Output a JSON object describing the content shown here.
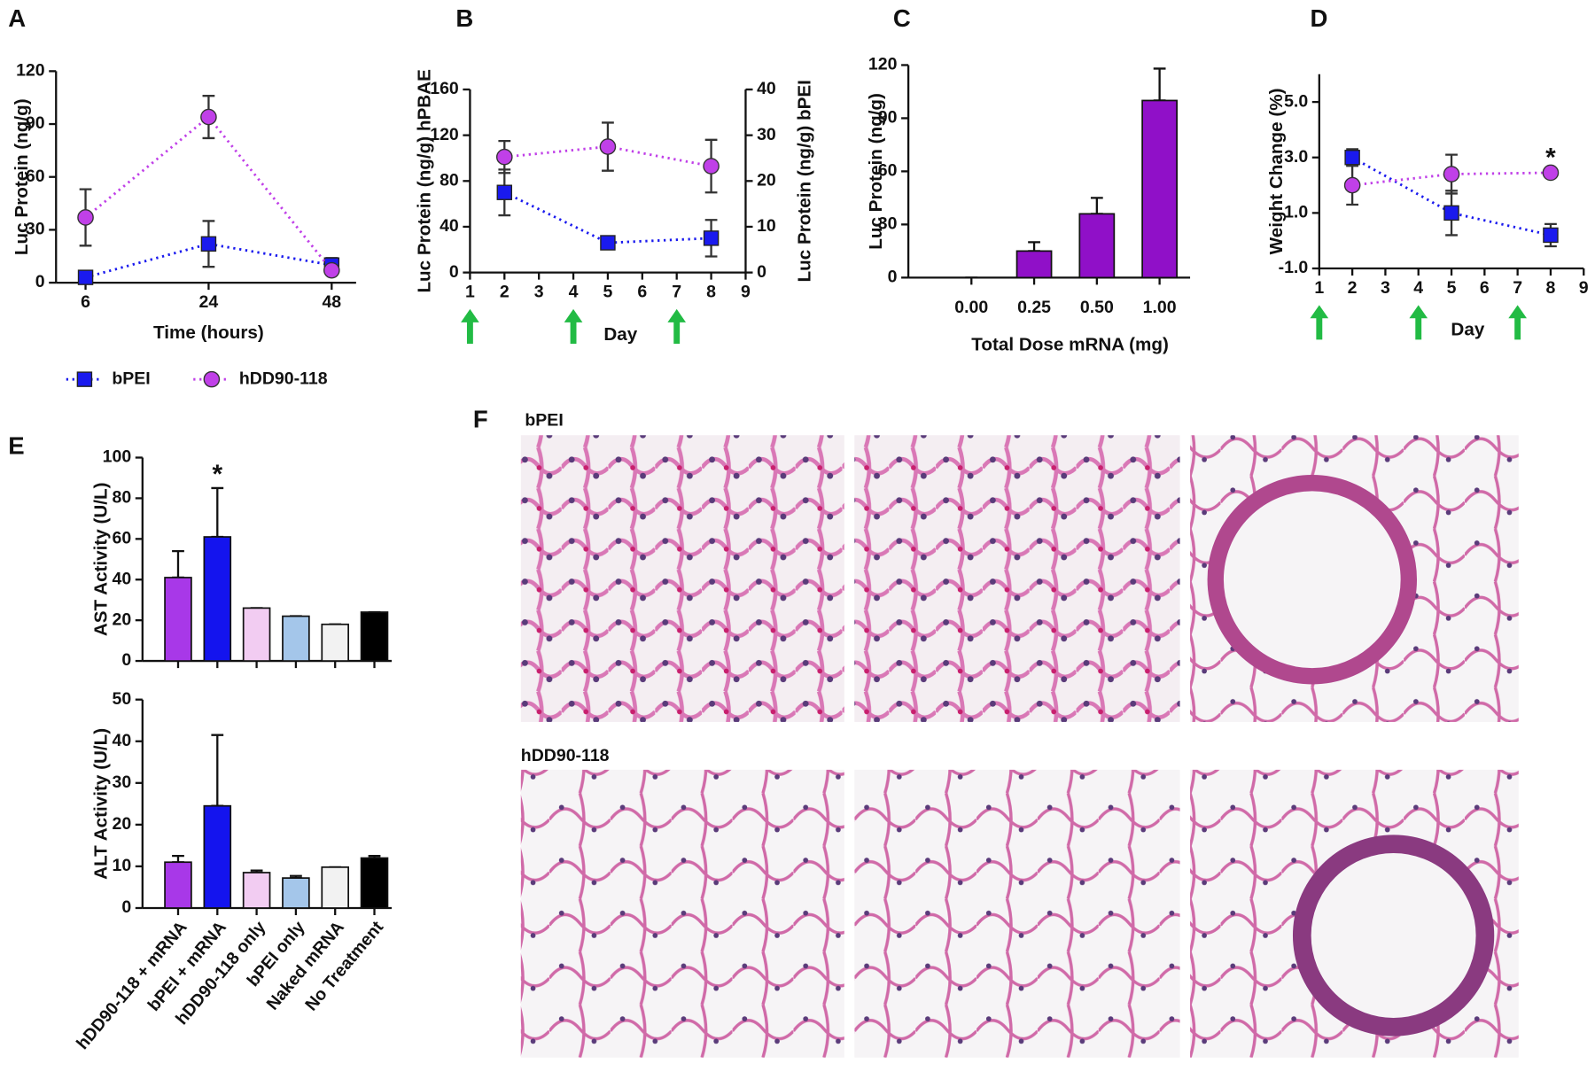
{
  "chart_data": [
    {
      "type": "line",
      "title": "A",
      "ylabel": "Luc Protein (ng/g)",
      "xlabel": "Time (hours)",
      "categories": [
        6,
        24,
        48
      ],
      "ylim": [
        0,
        120
      ],
      "yticks": [
        0,
        30,
        60,
        90,
        120
      ],
      "legend": "bottom",
      "series": [
        {
          "name": "bPEI",
          "color": "#1a1aee",
          "marker": "square",
          "values": [
            3,
            22,
            10
          ],
          "errors": [
            1,
            13,
            4
          ]
        },
        {
          "name": "hDD90-118",
          "color": "#c040e8",
          "marker": "circle",
          "values": [
            37,
            94,
            7
          ],
          "errors": [
            16,
            12,
            2
          ]
        }
      ]
    },
    {
      "type": "line",
      "title": "B",
      "ylabel": "Luc Protein (ng/g) hPBAE",
      "y2label": "Luc Protein (ng/g) bPEI",
      "xlabel": "Day",
      "x": [
        2,
        5,
        8
      ],
      "xlim": [
        1,
        9
      ],
      "xticks": [
        1,
        2,
        3,
        4,
        5,
        6,
        7,
        8,
        9
      ],
      "ylim": [
        0,
        160
      ],
      "yticks": [
        0,
        40,
        80,
        120,
        160
      ],
      "y2lim": [
        0,
        40
      ],
      "y2ticks": [
        0,
        10,
        20,
        30,
        40
      ],
      "arrows_x": [
        1,
        4,
        7
      ],
      "arrow_color": "#22bb44",
      "series": [
        {
          "name": "bPEI",
          "color": "#1a1aee",
          "marker": "square",
          "axis": "y2",
          "values": [
            17.5,
            6.5,
            7.5
          ],
          "errors": [
            5,
            1,
            4
          ]
        },
        {
          "name": "hDD90-118",
          "color": "#c040e8",
          "marker": "circle",
          "values": [
            101,
            110,
            93
          ],
          "errors": [
            14,
            21,
            23
          ]
        }
      ]
    },
    {
      "type": "bar",
      "title": "C",
      "ylabel": "Luc Protein (ng/g)",
      "xlabel": "Total Dose mRNA (mg)",
      "categories": [
        "0.00",
        "0.25",
        "0.50",
        "1.00"
      ],
      "values": [
        0,
        15,
        36,
        100
      ],
      "errors": [
        0,
        5,
        9,
        18
      ],
      "color": "#9010c8",
      "ylim": [
        0,
        120
      ],
      "yticks": [
        0,
        30,
        60,
        90,
        120
      ]
    },
    {
      "type": "line",
      "title": "D",
      "ylabel": "Weight Change (%)",
      "xlabel": "Day",
      "x": [
        2,
        5,
        8
      ],
      "xlim": [
        1,
        9
      ],
      "xticks": [
        1,
        2,
        3,
        4,
        5,
        6,
        7,
        8,
        9
      ],
      "ylim": [
        -1,
        6
      ],
      "yticks": [
        {
          "value": -1,
          "label": "-1.0"
        },
        {
          "value": 1,
          "label": "1.0"
        },
        {
          "value": 3,
          "label": "3.0"
        },
        {
          "value": 5,
          "label": "5.0"
        }
      ],
      "arrows_x": [
        1,
        4,
        7
      ],
      "arrow_color": "#22bb44",
      "annotations": [
        {
          "text": "*",
          "x": 8
        }
      ],
      "series": [
        {
          "name": "bPEI",
          "color": "#1a1aee",
          "marker": "square",
          "values": [
            3.0,
            1.0,
            0.2
          ],
          "errors": [
            0.3,
            0.8,
            0.4
          ]
        },
        {
          "name": "hDD90-118",
          "color": "#c040e8",
          "marker": "circle",
          "values": [
            2.0,
            2.4,
            2.45
          ],
          "errors": [
            0.7,
            0.7,
            0.05
          ]
        }
      ]
    },
    {
      "type": "bar",
      "title": "E",
      "ylabel": "AST Activity  (U/L)",
      "categories": [
        "hDD90-118 + mRNA",
        "bPEI + mRNA",
        "hDD90-118 only",
        "bPEI only",
        "Naked mRNA",
        "No Treatment"
      ],
      "values": [
        41,
        61,
        26,
        22,
        18,
        24
      ],
      "errors": [
        13,
        24,
        0,
        0,
        0,
        0
      ],
      "colors": [
        "#a838e8",
        "#1414ee",
        "#f2ccf2",
        "#a4c6ea",
        "#f2f2f2",
        "#000000"
      ],
      "ylim": [
        0,
        100
      ],
      "yticks": [
        0,
        20,
        40,
        60,
        80,
        100
      ],
      "annotations": [
        {
          "text": "*",
          "category": "bPEI + mRNA"
        }
      ],
      "hide_categories": true
    },
    {
      "type": "bar",
      "ylabel": "ALT Activity (U/L)",
      "categories": [
        "hDD90-118 + mRNA",
        "bPEI + mRNA",
        "hDD90-118 only",
        "bPEI only",
        "Naked mRNA",
        "No Treatment"
      ],
      "values": [
        11,
        24.5,
        8.5,
        7.2,
        9.8,
        12
      ],
      "errors": [
        1.5,
        17,
        0.5,
        0.5,
        0,
        0.5
      ],
      "colors": [
        "#a838e8",
        "#1414ee",
        "#f2ccf2",
        "#a4c6ea",
        "#f2f2f2",
        "#000000"
      ],
      "ylim": [
        0,
        50
      ],
      "yticks": [
        0,
        10,
        20,
        30,
        40,
        50
      ]
    }
  ],
  "panel_f": {
    "title": "F",
    "rows": [
      "bPEI",
      "hDD90-118"
    ]
  }
}
